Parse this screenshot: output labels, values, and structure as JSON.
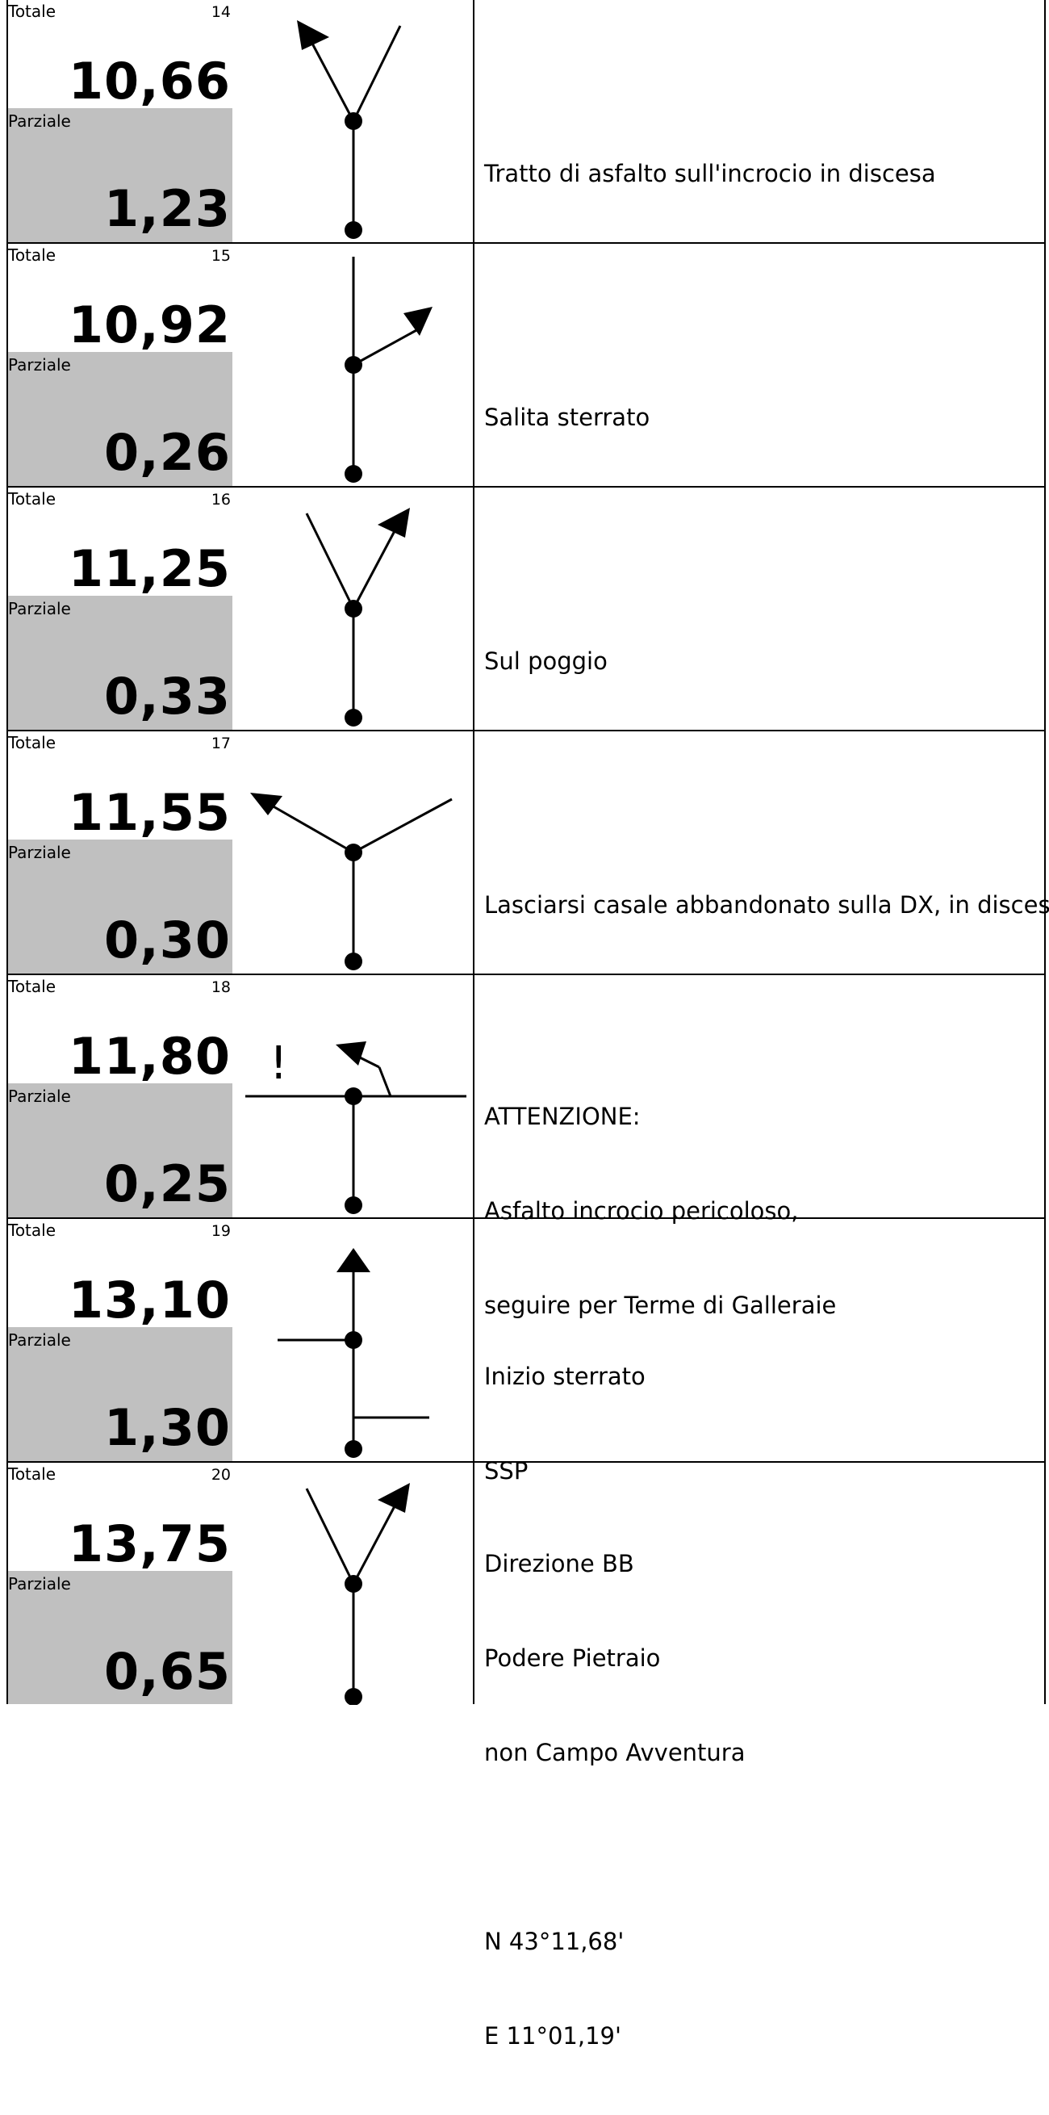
{
  "labels": {
    "totale": "Totale",
    "parziale": "Parziale"
  },
  "rows": [
    {
      "num": "14",
      "totale": "10,66",
      "parziale": "1,23",
      "desc": [
        "Tratto di asfalto sull'incrocio in discesa"
      ]
    },
    {
      "num": "15",
      "totale": "10,92",
      "parziale": "0,26",
      "desc": [
        "Salita sterrato"
      ]
    },
    {
      "num": "16",
      "totale": "11,25",
      "parziale": "0,33",
      "desc": [
        "Sul poggio"
      ]
    },
    {
      "num": "17",
      "totale": "11,55",
      "parziale": "0,30",
      "desc": [
        "Lasciarsi casale abbandonato sulla DX, in discesa"
      ]
    },
    {
      "num": "18",
      "totale": "11,80",
      "parziale": "0,25",
      "desc": [
        "ATTENZIONE:",
        "Asfalto incrocio pericoloso,",
        "seguire per Terme di Galleraie"
      ],
      "symbol_mark": "!"
    },
    {
      "num": "19",
      "totale": "13,10",
      "parziale": "1,30",
      "desc": [
        "Inizio sterrato",
        "SSP"
      ]
    },
    {
      "num": "20",
      "totale": "13,75",
      "parziale": "0,65",
      "desc": [
        "Direzione BB",
        "Podere Pietraio",
        "non Campo Avventura",
        "",
        "N 43°11,68'",
        "E 11°01,19'"
      ]
    }
  ]
}
